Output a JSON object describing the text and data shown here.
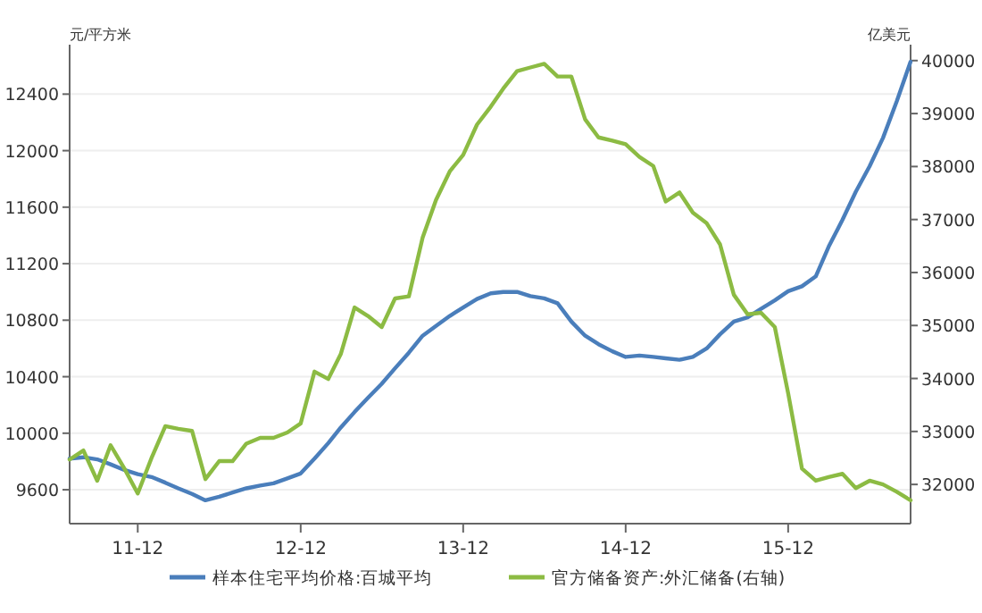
{
  "chart_data": {
    "type": "line",
    "ylabel": "元/平方米",
    "y2label": "亿美元",
    "x": [
      "2011-07",
      "2011-08",
      "2011-09",
      "2011-10",
      "2011-11",
      "2011-12",
      "2012-01",
      "2012-02",
      "2012-03",
      "2012-04",
      "2012-05",
      "2012-06",
      "2012-07",
      "2012-08",
      "2012-09",
      "2012-10",
      "2012-11",
      "2012-12",
      "2013-01",
      "2013-02",
      "2013-03",
      "2013-04",
      "2013-05",
      "2013-06",
      "2013-07",
      "2013-08",
      "2013-09",
      "2013-10",
      "2013-11",
      "2013-12",
      "2014-01",
      "2014-02",
      "2014-03",
      "2014-04",
      "2014-05",
      "2014-06",
      "2014-07",
      "2014-08",
      "2014-09",
      "2014-10",
      "2014-11",
      "2014-12",
      "2015-01",
      "2015-02",
      "2015-03",
      "2015-04",
      "2015-05",
      "2015-06",
      "2015-07",
      "2015-08",
      "2015-09",
      "2015-10",
      "2015-11",
      "2015-12",
      "2016-01",
      "2016-02",
      "2016-03",
      "2016-04",
      "2016-05",
      "2016-06",
      "2016-07",
      "2016-08",
      "2016-09"
    ],
    "series": [
      {
        "name": "样本住宅平均价格:百城平均",
        "color": "#4a7ebb",
        "values": [
          9820,
          9830,
          9815,
          9780,
          9740,
          9710,
          9690,
          9650,
          9610,
          9570,
          9525,
          9550,
          9580,
          9610,
          9630,
          9645,
          9680,
          9715,
          9820,
          9930,
          10040,
          10150,
          10250,
          10350,
          10460,
          10570,
          10690,
          10760,
          10830,
          10890,
          10950,
          10990,
          11000,
          11000,
          10970,
          10955,
          10920,
          10790,
          10690,
          10630,
          10580,
          10540,
          10550,
          10540,
          10530,
          10520,
          10540,
          10600,
          10700,
          10790,
          10820,
          10880,
          10940,
          11005,
          11040,
          11110,
          11320,
          11510,
          11710,
          11890,
          12090,
          12350,
          12630
        ]
      },
      {
        "name": "官方储备资产:外汇储备(右轴)",
        "color": "#8cbb43",
        "axis": "y2",
        "values": [
          32470,
          32640,
          32070,
          32740,
          32300,
          31830,
          32500,
          33100,
          33050,
          33010,
          32100,
          32440,
          32440,
          32770,
          32880,
          32880,
          32980,
          33150,
          34130,
          33990,
          34460,
          35340,
          35180,
          34970,
          35510,
          35550,
          36660,
          37370,
          37910,
          38220,
          38790,
          39130,
          39470,
          39800,
          39870,
          39940,
          39700,
          39700,
          38890,
          38550,
          38490,
          38420,
          38180,
          38010,
          37340,
          37510,
          37130,
          36930,
          36530,
          35580,
          35210,
          35240,
          34970,
          33720,
          32300,
          32070,
          32140,
          32200,
          31930,
          32070,
          32000,
          31860,
          31700
        ]
      }
    ],
    "xlim": [
      "2011-07",
      "2016-09"
    ],
    "xticks": [
      {
        "value": "2011-12",
        "label": "11-12"
      },
      {
        "value": "2012-12",
        "label": "12-12"
      },
      {
        "value": "2013-12",
        "label": "13-12"
      },
      {
        "value": "2014-12",
        "label": "14-12"
      },
      {
        "value": "2015-12",
        "label": "15-12"
      }
    ],
    "ylim": [
      9360,
      12750
    ],
    "yticks": [
      9600,
      10000,
      10400,
      10800,
      11200,
      11600,
      12000,
      12400
    ],
    "y2lim": [
      31260,
      40300
    ],
    "y2ticks": [
      32000,
      33000,
      34000,
      35000,
      36000,
      37000,
      38000,
      39000,
      40000
    ],
    "grid": "y",
    "legend": "bottom",
    "marker": "none",
    "line_style": "solid"
  }
}
